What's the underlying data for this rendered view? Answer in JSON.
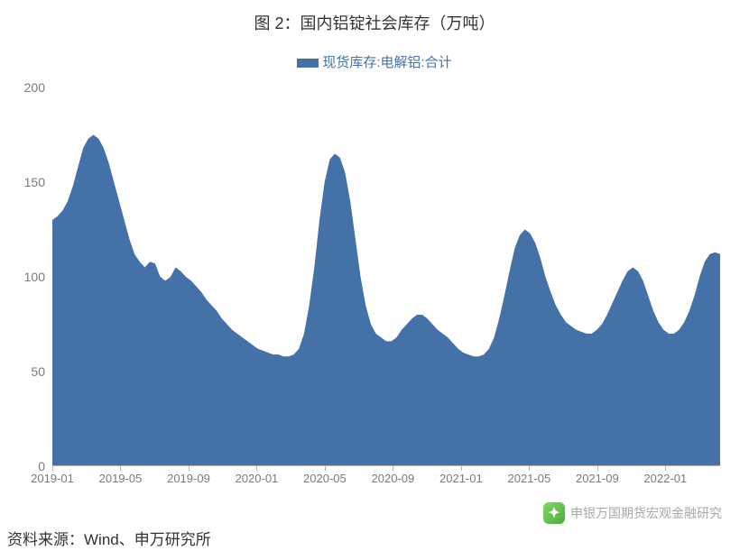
{
  "title": "图 2：国内铝锭社会库存（万吨）",
  "legend_label": "现货库存:电解铝:合计",
  "source": "资料来源：Wind、申万研究所",
  "watermark": "申银万国期货宏观金融研究",
  "chart": {
    "type": "area",
    "series_color": "#4472a8",
    "background_color": "#ffffff",
    "axis_color": "#b5b5b5",
    "tick_font_color": "#7a7a7a",
    "title_fontsize": 18,
    "legend_fontsize": 15,
    "tick_fontsize": 14,
    "ylim": [
      0,
      200
    ],
    "ytick_step": 50,
    "y_ticks": [
      0,
      50,
      100,
      150,
      200
    ],
    "x_labels": [
      "2019-01",
      "2019-05",
      "2019-09",
      "2020-01",
      "2020-05",
      "2020-09",
      "2021-01",
      "2021-05",
      "2021-09",
      "2022-01"
    ],
    "x_positions": [
      0,
      0.102,
      0.204,
      0.306,
      0.408,
      0.51,
      0.612,
      0.714,
      0.816,
      0.918
    ],
    "data": [
      130,
      132,
      135,
      140,
      148,
      158,
      168,
      173,
      175,
      173,
      168,
      160,
      150,
      140,
      130,
      120,
      112,
      108,
      105,
      108,
      107,
      100,
      98,
      100,
      105,
      103,
      100,
      98,
      95,
      92,
      88,
      85,
      82,
      78,
      75,
      72,
      70,
      68,
      66,
      64,
      62,
      61,
      60,
      59,
      59,
      58,
      58,
      59,
      62,
      70,
      85,
      105,
      130,
      150,
      162,
      165,
      163,
      155,
      140,
      120,
      100,
      85,
      75,
      70,
      68,
      66,
      66,
      68,
      72,
      75,
      78,
      80,
      80,
      78,
      75,
      72,
      70,
      68,
      65,
      62,
      60,
      59,
      58,
      58,
      59,
      62,
      68,
      78,
      90,
      103,
      115,
      122,
      125,
      123,
      118,
      110,
      100,
      92,
      85,
      80,
      76,
      74,
      72,
      71,
      70,
      70,
      72,
      75,
      80,
      86,
      92,
      98,
      103,
      105,
      103,
      98,
      90,
      82,
      76,
      72,
      70,
      70,
      72,
      76,
      82,
      90,
      100,
      108,
      112,
      113,
      112
    ]
  }
}
